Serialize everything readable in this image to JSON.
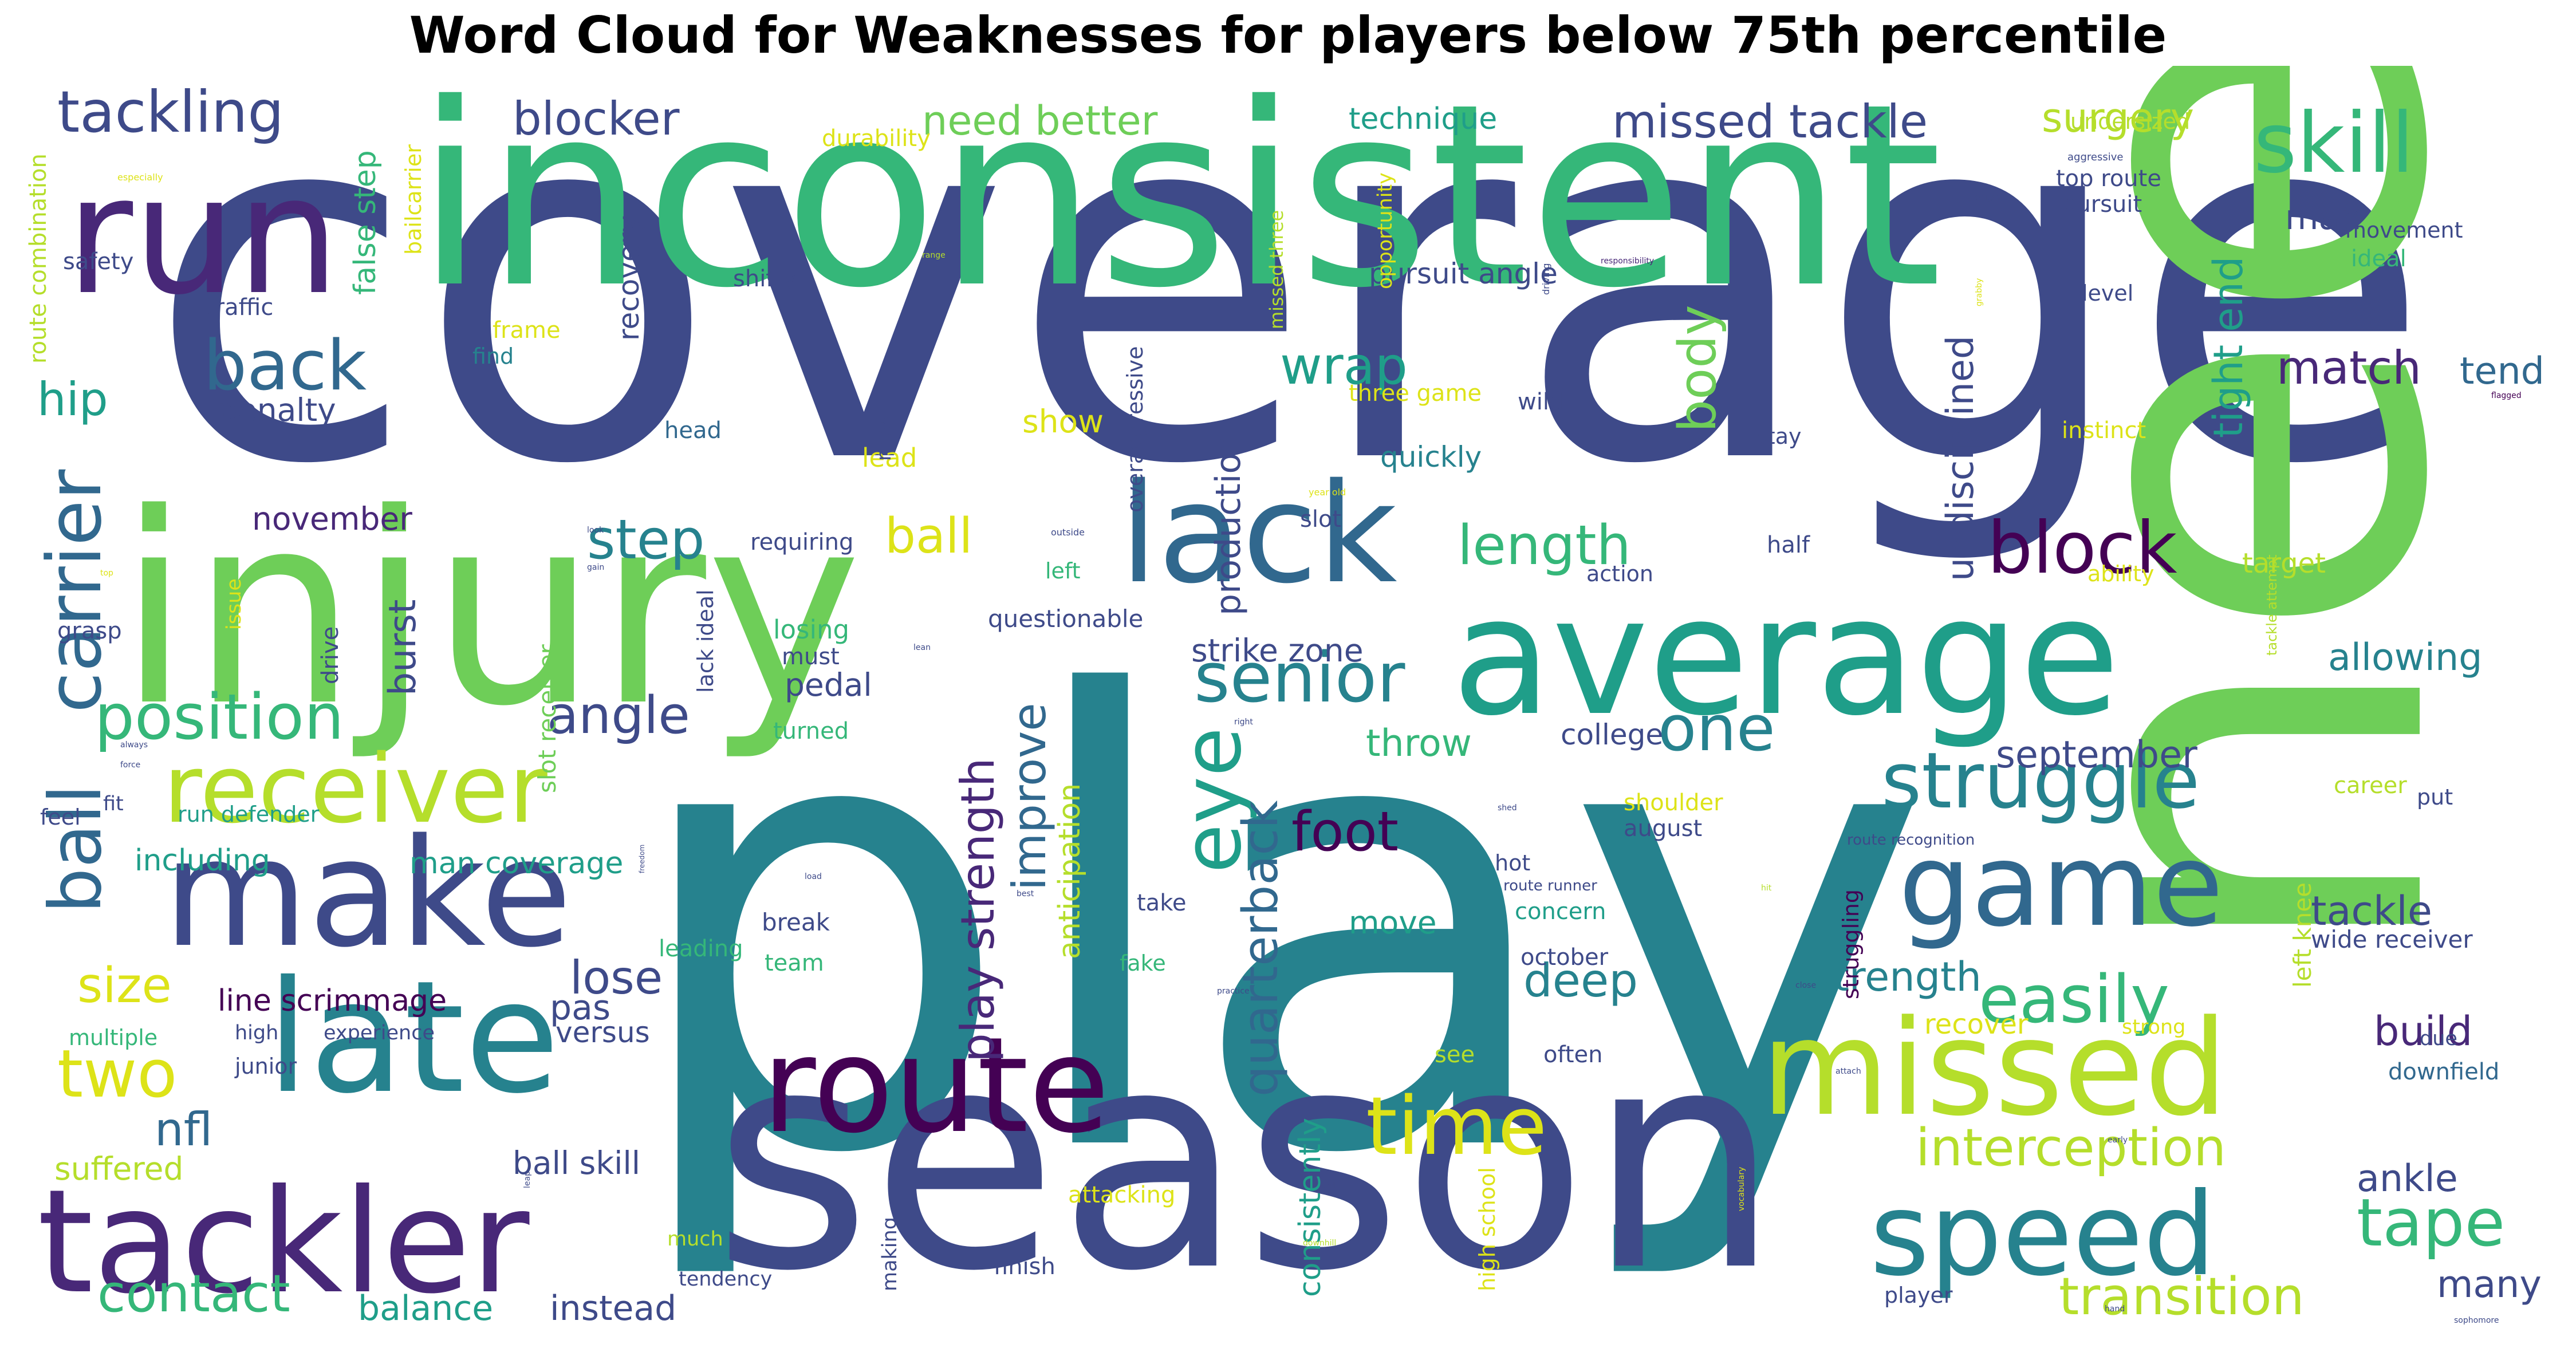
{
  "chart_data": {
    "type": "wordcloud",
    "title": "Word Cloud for Weaknesses for players below 75th percentile",
    "palette": [
      "#440154",
      "#482878",
      "#3e4a89",
      "#31688e",
      "#26828e",
      "#1f9e89",
      "#35b779",
      "#6ece58",
      "#b5de2b",
      "#dde318"
    ],
    "words": [
      {
        "text": "coverage",
        "color": "#3e4a89"
      },
      {
        "text": "play",
        "color": "#26828e"
      },
      {
        "text": "need",
        "color": "#6ece58"
      },
      {
        "text": "season",
        "color": "#3e4a89"
      },
      {
        "text": "inconsistent",
        "color": "#35b779"
      },
      {
        "text": "injury",
        "color": "#6ece58"
      },
      {
        "text": "run",
        "color": "#482878"
      },
      {
        "text": "average",
        "color": "#1f9e89"
      },
      {
        "text": "lack",
        "color": "#31688e"
      },
      {
        "text": "late",
        "color": "#26828e"
      },
      {
        "text": "make",
        "color": "#3e4a89"
      },
      {
        "text": "tackler",
        "color": "#482878"
      },
      {
        "text": "route",
        "color": "#440154"
      },
      {
        "text": "missed",
        "color": "#b5de2b"
      },
      {
        "text": "game",
        "color": "#31688e"
      },
      {
        "text": "speed",
        "color": "#26828e"
      },
      {
        "text": "receiver",
        "color": "#b5de2b"
      },
      {
        "text": "skill",
        "color": "#35b779"
      },
      {
        "text": "struggle",
        "color": "#26828e"
      },
      {
        "text": "back",
        "color": "#31688e"
      },
      {
        "text": "time",
        "color": "#dde318"
      },
      {
        "text": "block",
        "color": "#440154"
      },
      {
        "text": "carrier",
        "color": "#31688e"
      },
      {
        "text": "ball",
        "color": "#31688e"
      },
      {
        "text": "position",
        "color": "#35b779"
      },
      {
        "text": "tackling",
        "color": "#3e4a89"
      },
      {
        "text": "senior",
        "color": "#26828e"
      },
      {
        "text": "easily",
        "color": "#35b779"
      },
      {
        "text": "eye",
        "color": "#1f9e89"
      },
      {
        "text": "two",
        "color": "#dde318"
      },
      {
        "text": "tape",
        "color": "#35b779"
      },
      {
        "text": "interception",
        "color": "#b5de2b"
      },
      {
        "text": "one",
        "color": "#26828e"
      },
      {
        "text": "foot",
        "color": "#440154"
      },
      {
        "text": "contact",
        "color": "#35b779"
      },
      {
        "text": "transition",
        "color": "#b5de2b"
      },
      {
        "text": "angle",
        "color": "#3e4a89"
      },
      {
        "text": "length",
        "color": "#35b779"
      },
      {
        "text": "step",
        "color": "#26828e"
      },
      {
        "text": "wrap",
        "color": "#1f9e89"
      },
      {
        "text": "blocker",
        "color": "#3e4a89"
      },
      {
        "text": "missed tackle",
        "color": "#3e4a89"
      },
      {
        "text": "need better",
        "color": "#6ece58"
      },
      {
        "text": "surgery",
        "color": "#b5de2b"
      },
      {
        "text": "body",
        "color": "#6ece58"
      },
      {
        "text": "match",
        "color": "#482878"
      },
      {
        "text": "size",
        "color": "#dde318"
      },
      {
        "text": "deep",
        "color": "#26828e"
      },
      {
        "text": "quarterback",
        "color": "#31688e"
      },
      {
        "text": "ball",
        "color": "#dde318"
      },
      {
        "text": "hip",
        "color": "#1f9e89"
      },
      {
        "text": "nfl",
        "color": "#31688e"
      },
      {
        "text": "lose",
        "color": "#3e4a89"
      },
      {
        "text": "play strength",
        "color": "#482878"
      },
      {
        "text": "improve",
        "color": "#31688e"
      },
      {
        "text": "strength",
        "color": "#26828e"
      },
      {
        "text": "tackle",
        "color": "#3e4a89"
      },
      {
        "text": "ankle",
        "color": "#3e4a89"
      },
      {
        "text": "build",
        "color": "#482878"
      },
      {
        "text": "many",
        "color": "#3e4a89"
      },
      {
        "text": "allowing",
        "color": "#26828e"
      },
      {
        "text": "september",
        "color": "#3e4a89"
      },
      {
        "text": "tight end",
        "color": "#1f9e89"
      },
      {
        "text": "tend",
        "color": "#31688e"
      },
      {
        "text": "undisciplined",
        "color": "#3e4a89"
      },
      {
        "text": "burst",
        "color": "#3e4a89"
      },
      {
        "text": "man",
        "color": "#3e4a89"
      },
      {
        "text": "balance",
        "color": "#1f9e89"
      },
      {
        "text": "instead",
        "color": "#3e4a89"
      },
      {
        "text": "throw",
        "color": "#35b779"
      },
      {
        "text": "production",
        "color": "#3e4a89"
      },
      {
        "text": "ball skill",
        "color": "#3e4a89"
      },
      {
        "text": "suffered",
        "color": "#b5de2b"
      },
      {
        "text": "pas",
        "color": "#3e4a89"
      },
      {
        "text": "move",
        "color": "#1f9e89"
      },
      {
        "text": "versus",
        "color": "#3e4a89"
      },
      {
        "text": "line scrimmage",
        "color": "#440154"
      },
      {
        "text": "man coverage",
        "color": "#1f9e89"
      },
      {
        "text": "including",
        "color": "#1f9e89"
      },
      {
        "text": "strike zone",
        "color": "#3e4a89"
      },
      {
        "text": "college",
        "color": "#3e4a89"
      },
      {
        "text": "pedal",
        "color": "#3e4a89"
      },
      {
        "text": "penalty",
        "color": "#3e4a89"
      },
      {
        "text": "november",
        "color": "#482878"
      },
      {
        "text": "quickly",
        "color": "#26828e"
      },
      {
        "text": "show",
        "color": "#dde318"
      },
      {
        "text": "pursuit angle",
        "color": "#3e4a89"
      },
      {
        "text": "recovery",
        "color": "#3e4a89"
      },
      {
        "text": "false step",
        "color": "#35b779"
      },
      {
        "text": "technique",
        "color": "#1f9e89"
      },
      {
        "text": "consistently",
        "color": "#1f9e89"
      },
      {
        "text": "anticipation",
        "color": "#b5de2b"
      },
      {
        "text": "recover",
        "color": "#dde318"
      },
      {
        "text": "wide receiver",
        "color": "#3e4a89"
      },
      {
        "text": "left knee",
        "color": "#b5de2b"
      },
      {
        "text": "target",
        "color": "#b5de2b"
      },
      {
        "text": "downfield",
        "color": "#31688e"
      },
      {
        "text": "top route",
        "color": "#3e4a89"
      },
      {
        "text": "pursuit",
        "color": "#3e4a89"
      },
      {
        "text": "movement",
        "color": "#3e4a89"
      },
      {
        "text": "ideal",
        "color": "#35b779"
      },
      {
        "text": "undersized",
        "color": "#b5de2b"
      },
      {
        "text": "durability",
        "color": "#dde318"
      },
      {
        "text": "bailcarrier",
        "color": "#dde318"
      },
      {
        "text": "route combination",
        "color": "#b5de2b"
      },
      {
        "text": "safety",
        "color": "#3e4a89"
      },
      {
        "text": "traffic",
        "color": "#3e4a89"
      },
      {
        "text": "shifty",
        "color": "#3e4a89"
      },
      {
        "text": "frame",
        "color": "#dde318"
      },
      {
        "text": "find",
        "color": "#26828e"
      },
      {
        "text": "three game",
        "color": "#dde318"
      },
      {
        "text": "wild",
        "color": "#3e4a89"
      },
      {
        "text": "level",
        "color": "#3e4a89"
      },
      {
        "text": "instinct",
        "color": "#dde318"
      },
      {
        "text": "stay",
        "color": "#3e4a89"
      },
      {
        "text": "lead",
        "color": "#dde318"
      },
      {
        "text": "head",
        "color": "#31688e"
      },
      {
        "text": "slot",
        "color": "#3e4a89"
      },
      {
        "text": "half",
        "color": "#3e4a89"
      },
      {
        "text": "requiring",
        "color": "#3e4a89"
      },
      {
        "text": "left",
        "color": "#35b779"
      },
      {
        "text": "action",
        "color": "#3e4a89"
      },
      {
        "text": "ability",
        "color": "#dde318"
      },
      {
        "text": "questionable",
        "color": "#3e4a89"
      },
      {
        "text": "losing",
        "color": "#35b779"
      },
      {
        "text": "must",
        "color": "#3e4a89"
      },
      {
        "text": "turned",
        "color": "#35b779"
      },
      {
        "text": "grasp",
        "color": "#3e4a89"
      },
      {
        "text": "drive",
        "color": "#3e4a89"
      },
      {
        "text": "slot receiver",
        "color": "#6ece58"
      },
      {
        "text": "lack ideal",
        "color": "#3e4a89"
      },
      {
        "text": "miss",
        "color": "#3e4a89"
      },
      {
        "text": "overaggressive",
        "color": "#3e4a89"
      },
      {
        "text": "missed three",
        "color": "#b5de2b"
      },
      {
        "text": "opportunity",
        "color": "#dde318"
      },
      {
        "text": "issue",
        "color": "#dde318"
      },
      {
        "text": "career",
        "color": "#b5de2b"
      },
      {
        "text": "shoulder",
        "color": "#dde318"
      },
      {
        "text": "august",
        "color": "#3e4a89"
      },
      {
        "text": "put",
        "color": "#3e4a89"
      },
      {
        "text": "hot",
        "color": "#3e4a89"
      },
      {
        "text": "concern",
        "color": "#1f9e89"
      },
      {
        "text": "take",
        "color": "#3e4a89"
      },
      {
        "text": "fake",
        "color": "#35b779"
      },
      {
        "text": "october",
        "color": "#3e4a89"
      },
      {
        "text": "see",
        "color": "#b5de2b"
      },
      {
        "text": "often",
        "color": "#3e4a89"
      },
      {
        "text": "strong",
        "color": "#dde318"
      },
      {
        "text": "due",
        "color": "#3e4a89"
      },
      {
        "text": "break",
        "color": "#3e4a89"
      },
      {
        "text": "team",
        "color": "#35b779"
      },
      {
        "text": "leading",
        "color": "#35b779"
      },
      {
        "text": "experience",
        "color": "#3e4a89"
      },
      {
        "text": "run defender",
        "color": "#1f9e89"
      },
      {
        "text": "multiple",
        "color": "#35b779"
      },
      {
        "text": "high",
        "color": "#3e4a89"
      },
      {
        "text": "junior",
        "color": "#3e4a89"
      },
      {
        "text": "feel",
        "color": "#3e4a89"
      },
      {
        "text": "fit",
        "color": "#3e4a89"
      },
      {
        "text": "much",
        "color": "#b5de2b"
      },
      {
        "text": "tendency",
        "color": "#3e4a89"
      },
      {
        "text": "making",
        "color": "#3e4a89"
      },
      {
        "text": "finish",
        "color": "#3e4a89"
      },
      {
        "text": "attacking",
        "color": "#dde318"
      },
      {
        "text": "high school",
        "color": "#dde318"
      },
      {
        "text": "player",
        "color": "#3e4a89"
      },
      {
        "text": "struggling",
        "color": "#440154"
      },
      {
        "text": "route runner",
        "color": "#3e4a89"
      },
      {
        "text": "route recognition",
        "color": "#3e4a89"
      },
      {
        "text": "tackle attempt",
        "color": "#b5de2b"
      },
      {
        "text": "especially",
        "color": "#dde318"
      },
      {
        "text": "upright",
        "color": "#3e4a89"
      },
      {
        "text": "aggressive",
        "color": "#3e4a89"
      },
      {
        "text": "responsibility",
        "color": "#482878"
      },
      {
        "text": "range",
        "color": "#b5de2b"
      },
      {
        "text": "driving",
        "color": "#3e4a89"
      },
      {
        "text": "grabby",
        "color": "#dde318"
      },
      {
        "text": "flagged",
        "color": "#440154"
      },
      {
        "text": "year old",
        "color": "#dde318"
      },
      {
        "text": "outside",
        "color": "#3e4a89"
      },
      {
        "text": "look",
        "color": "#3e4a89"
      },
      {
        "text": "gain",
        "color": "#3e4a89"
      },
      {
        "text": "top",
        "color": "#dde318"
      },
      {
        "text": "lean",
        "color": "#3e4a89"
      },
      {
        "text": "right",
        "color": "#3e4a89"
      },
      {
        "text": "always",
        "color": "#3e4a89"
      },
      {
        "text": "force",
        "color": "#3e4a89"
      },
      {
        "text": "shed",
        "color": "#3e4a89"
      },
      {
        "text": "freedom",
        "color": "#3e4a89"
      },
      {
        "text": "hit",
        "color": "#b5de2b"
      },
      {
        "text": "load",
        "color": "#3e4a89"
      },
      {
        "text": "best",
        "color": "#3e4a89"
      },
      {
        "text": "practice",
        "color": "#3e4a89"
      },
      {
        "text": "close",
        "color": "#3e4a89"
      },
      {
        "text": "attach",
        "color": "#3e4a89"
      },
      {
        "text": "early",
        "color": "#3e4a89"
      },
      {
        "text": "leap",
        "color": "#3e4a89"
      },
      {
        "text": "bad",
        "color": "#3e4a89"
      },
      {
        "text": "downhill",
        "color": "#b5de2b"
      },
      {
        "text": "vocabulary",
        "color": "#dde318"
      },
      {
        "text": "hand",
        "color": "#3e4a89"
      },
      {
        "text": "sophomore",
        "color": "#3e4a89"
      }
    ]
  }
}
